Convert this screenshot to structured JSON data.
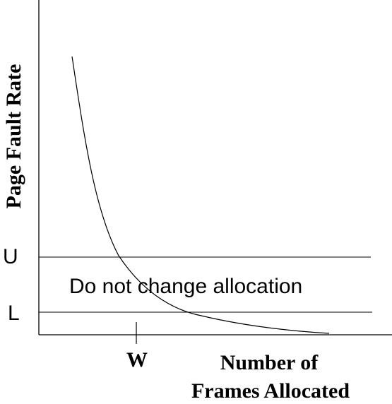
{
  "y_axis_label": "Page Fault Rate",
  "x_axis_label_line1": "Number of",
  "x_axis_label_line2": "Frames Allocated",
  "upper_threshold_label": "U",
  "lower_threshold_label": "L",
  "band_label": "Do not change allocation",
  "working_set_tick_label": "W",
  "colors": {
    "background": "#ffffff",
    "ink": "#000000"
  }
}
